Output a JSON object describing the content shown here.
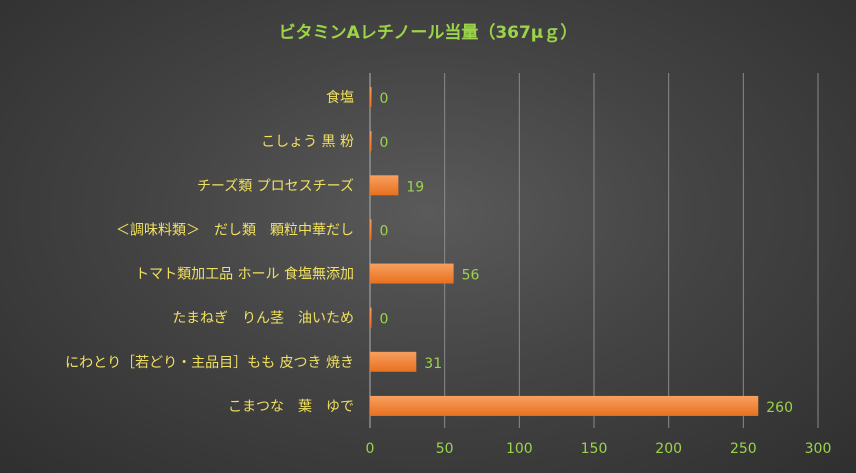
{
  "chart_data": {
    "type": "bar",
    "orientation": "horizontal",
    "title": "ビタミンAレチノール当量（367μｇ）",
    "xlabel": "",
    "ylabel": "",
    "xlim": [
      0,
      300
    ],
    "x_ticks": [
      0,
      50,
      100,
      150,
      200,
      250,
      300
    ],
    "grid": true,
    "legend": "none",
    "categories": [
      "食塩",
      "こしょう 黒 粉",
      "チーズ類 プロセスチーズ",
      "＜調味料類＞　だし類　顆粒中華だし",
      "トマト類加工品 ホール 食塩無添加",
      "たまねぎ　りん茎　油いため",
      "にわとり［若どり・主品目］もも 皮つき 焼き",
      "こまつな　葉　ゆで"
    ],
    "values": [
      0,
      0,
      19,
      0,
      56,
      0,
      31,
      260
    ],
    "colors": {
      "bar": "#f07a28",
      "bar_light": "#f79a4e",
      "title": "#9bd34a",
      "category_text": "#f0e060",
      "value_text": "#9bd34a"
    }
  }
}
